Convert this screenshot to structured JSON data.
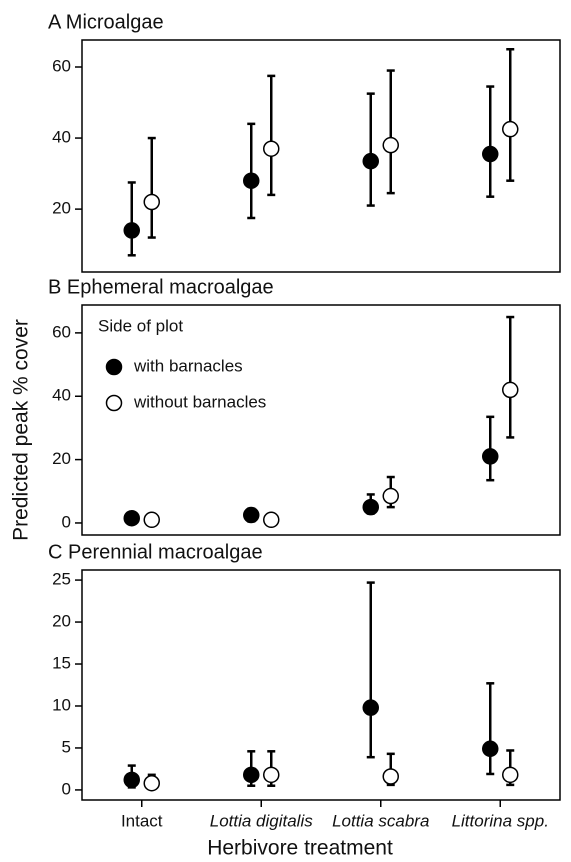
{
  "chart_data": [
    {
      "type": "errorbar",
      "title": "A  Microalgae",
      "categories": [
        null,
        null,
        null,
        null
      ],
      "series": [
        {
          "name": "with barnacles",
          "color": "#000000",
          "fill": "#000000",
          "values": [
            14,
            28,
            33.5,
            35.5
          ],
          "lower": [
            7,
            17.5,
            21,
            23.5
          ],
          "upper": [
            27.5,
            44,
            52.5,
            54.5
          ]
        },
        {
          "name": "without barnacles",
          "color": "#000000",
          "fill": "#ffffff",
          "values": [
            22,
            37,
            38,
            42.5
          ],
          "lower": [
            12,
            24,
            24.5,
            28
          ],
          "upper": [
            40,
            57.5,
            59,
            65
          ]
        }
      ],
      "ylim": [
        2.3,
        67.6
      ],
      "yticks": [
        20,
        40,
        60
      ]
    },
    {
      "type": "errorbar",
      "title": "B  Ephemeral macroalgae",
      "ylabel": "Predicted peak % cover",
      "legend_title": "Side of plot",
      "legend": "upper left",
      "categories": [
        null,
        null,
        null,
        null
      ],
      "series": [
        {
          "name": "with barnacles",
          "color": "#000000",
          "fill": "#000000",
          "values": [
            1.5,
            2.5,
            5,
            21
          ],
          "lower": [
            1,
            0.5,
            3,
            13.5
          ],
          "upper": [
            2,
            4.5,
            9,
            33.5
          ]
        },
        {
          "name": "without barnacles",
          "color": "#000000",
          "fill": "#ffffff",
          "values": [
            1,
            1,
            8.5,
            42
          ],
          "lower": [
            1,
            1,
            5,
            27
          ],
          "upper": [
            1,
            1,
            14.5,
            65
          ]
        }
      ],
      "ylim": [
        -3.8,
        68.8
      ],
      "yticks": [
        0,
        20,
        40,
        60
      ]
    },
    {
      "type": "errorbar",
      "title": "C  Perennial macroalgae",
      "xlabel": "Herbivore treatment",
      "categories": [
        "Intact",
        "Lottia digitalis",
        "Lottia scabra",
        "Littorina spp."
      ],
      "italic_categories": [
        false,
        true,
        true,
        true
      ],
      "series": [
        {
          "name": "with barnacles",
          "color": "#000000",
          "fill": "#000000",
          "values": [
            1.2,
            1.8,
            9.8,
            4.9
          ],
          "lower": [
            0.3,
            0.5,
            3.9,
            1.9
          ],
          "upper": [
            2.9,
            4.6,
            24.7,
            12.7
          ]
        },
        {
          "name": "without barnacles",
          "color": "#000000",
          "fill": "#ffffff",
          "values": [
            0.8,
            1.8,
            1.6,
            1.8
          ],
          "lower": [
            0.3,
            0.5,
            0.6,
            0.6
          ],
          "upper": [
            1.8,
            4.6,
            4.3,
            4.7
          ]
        }
      ],
      "ylim": [
        -1.2,
        26.2
      ],
      "yticks": [
        0,
        5,
        10,
        15,
        20,
        25
      ]
    }
  ]
}
